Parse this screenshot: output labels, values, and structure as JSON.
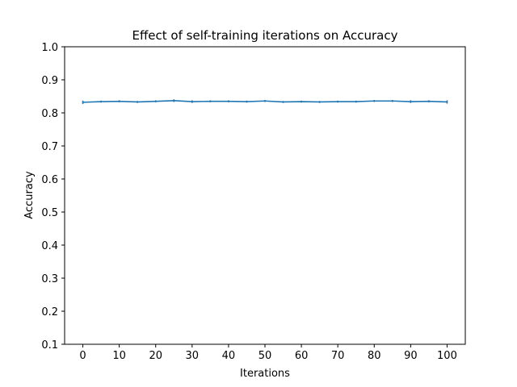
{
  "chart_data": {
    "type": "line",
    "title": "Effect of self-training iterations on Accuracy",
    "xlabel": "Iterations",
    "ylabel": "Accuracy",
    "xlim": [
      -5,
      105
    ],
    "ylim": [
      0.1,
      1.0
    ],
    "xticks": [
      "0",
      "10",
      "20",
      "30",
      "40",
      "50",
      "60",
      "70",
      "80",
      "90",
      "100"
    ],
    "yticks": [
      "0.1",
      "0.2",
      "0.3",
      "0.4",
      "0.5",
      "0.6",
      "0.7",
      "0.8",
      "0.9",
      "1.0"
    ],
    "xtick_values": [
      0,
      10,
      20,
      30,
      40,
      50,
      60,
      70,
      80,
      90,
      100
    ],
    "ytick_values": [
      0.1,
      0.2,
      0.3,
      0.4,
      0.5,
      0.6,
      0.7,
      0.8,
      0.9,
      1.0
    ],
    "grid": false,
    "legend": false,
    "series": [
      {
        "color": "#1f77b4",
        "x": [
          0,
          5,
          10,
          15,
          20,
          25,
          30,
          35,
          40,
          45,
          50,
          55,
          60,
          65,
          70,
          75,
          80,
          85,
          90,
          95,
          100
        ],
        "y": [
          0.832,
          0.834,
          0.835,
          0.833,
          0.835,
          0.837,
          0.834,
          0.835,
          0.835,
          0.834,
          0.836,
          0.833,
          0.834,
          0.833,
          0.834,
          0.834,
          0.836,
          0.836,
          0.834,
          0.835,
          0.833
        ],
        "yerr": [
          0.005,
          0.003,
          0.003,
          0.003,
          0.003,
          0.004,
          0.004,
          0.003,
          0.003,
          0.003,
          0.003,
          0.003,
          0.003,
          0.003,
          0.003,
          0.003,
          0.003,
          0.003,
          0.004,
          0.003,
          0.005
        ]
      }
    ]
  }
}
